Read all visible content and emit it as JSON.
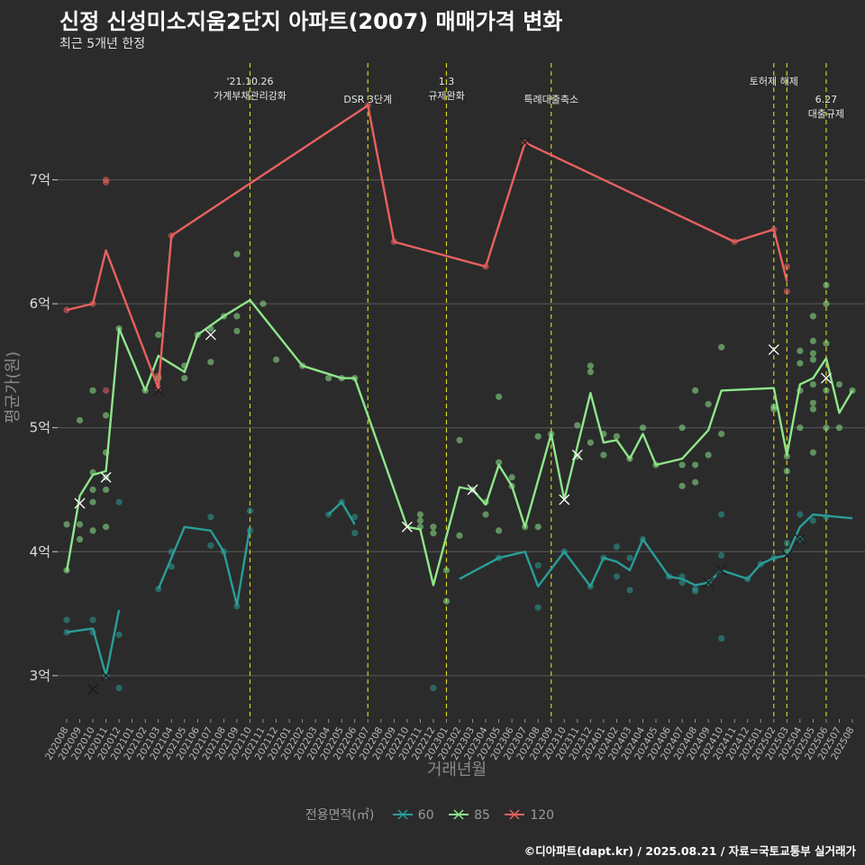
{
  "title": "신정 신성미소지움2단지 아파트(2007) 매매가격 변화",
  "subtitle": "최근 5개년 한정",
  "caption": "©디아파트(dapt.kr) / 2025.08.21 / 자료=국토교통부 실거래가",
  "legend": {
    "title": "전용면적(㎡)",
    "items": [
      {
        "label": "60",
        "color": "#2a9d98"
      },
      {
        "label": "85",
        "color": "#8ee68a"
      },
      {
        "label": "120",
        "color": "#e8615f"
      }
    ]
  },
  "chart_data": {
    "type": "line",
    "title": "신정 신성미소지움2단지 아파트(2007) 매매가격 변화",
    "subtitle": "최근 5개년 한정",
    "xlabel": "거래년월",
    "ylabel": "평균가(원)",
    "ylim": [
      2.65,
      8.0
    ],
    "yticks": [
      3,
      4,
      5,
      6,
      7
    ],
    "yticklabels": [
      "3억",
      "4억",
      "5억",
      "6억",
      "7억"
    ],
    "grid": true,
    "legend_position": "bottom",
    "x_categories": [
      "202008",
      "202009",
      "202010",
      "202011",
      "202012",
      "202101",
      "202102",
      "202103",
      "202104",
      "202105",
      "202106",
      "202107",
      "202108",
      "202109",
      "202110",
      "202111",
      "202112",
      "202201",
      "202202",
      "202203",
      "202204",
      "202205",
      "202206",
      "202207",
      "202208",
      "202209",
      "202210",
      "202211",
      "202212",
      "202301",
      "202302",
      "202303",
      "202304",
      "202305",
      "202306",
      "202307",
      "202308",
      "202309",
      "202310",
      "202311",
      "202312",
      "202401",
      "202402",
      "202403",
      "202404",
      "202405",
      "202406",
      "202407",
      "202408",
      "202409",
      "202410",
      "202411",
      "202412",
      "202501",
      "202502",
      "202503",
      "202504",
      "202505",
      "202506",
      "202507",
      "202508"
    ],
    "series": [
      {
        "name": "60",
        "color": "#2a9d98",
        "line": [
          [
            0,
            3.35
          ],
          [
            2,
            3.38
          ],
          [
            3,
            3.0
          ],
          [
            4,
            3.53
          ],
          null,
          [
            7,
            3.7
          ],
          [
            9,
            4.2
          ],
          [
            11,
            4.17
          ],
          [
            12,
            4.0
          ],
          [
            13,
            3.57
          ],
          [
            14,
            4.2
          ],
          null,
          [
            20,
            4.3
          ],
          [
            21,
            4.4
          ],
          [
            22,
            4.22
          ],
          null,
          [
            30,
            3.78
          ],
          [
            33,
            3.95
          ],
          [
            35,
            4.0
          ],
          [
            36,
            3.72
          ],
          [
            38,
            4.0
          ],
          [
            40,
            3.72
          ],
          [
            41,
            3.95
          ],
          [
            42,
            3.92
          ],
          [
            43,
            3.85
          ],
          [
            44,
            4.1
          ],
          [
            46,
            3.8
          ],
          [
            47,
            3.78
          ],
          [
            48,
            3.73
          ],
          [
            49,
            3.75
          ],
          [
            50,
            3.85
          ],
          [
            52,
            3.78
          ],
          [
            53,
            3.9
          ],
          [
            54,
            3.95
          ],
          [
            55,
            3.97
          ],
          [
            56,
            4.2
          ],
          [
            57,
            4.3
          ],
          [
            60,
            4.27
          ]
        ],
        "points": [
          [
            0,
            3.45
          ],
          [
            0,
            3.35
          ],
          [
            2,
            3.45
          ],
          [
            2,
            3.35
          ],
          [
            3,
            3.0
          ],
          [
            4,
            3.33
          ],
          [
            4,
            2.9
          ],
          [
            4,
            4.4
          ],
          [
            7,
            3.7
          ],
          [
            8,
            3.88
          ],
          [
            8,
            4.0
          ],
          [
            11,
            4.28
          ],
          [
            11,
            4.05
          ],
          [
            12,
            4.0
          ],
          [
            13,
            3.56
          ],
          [
            14,
            4.33
          ],
          [
            14,
            4.17
          ],
          [
            20,
            4.3
          ],
          [
            21,
            4.4
          ],
          [
            22,
            4.28
          ],
          [
            22,
            4.15
          ],
          [
            28,
            2.9
          ],
          [
            33,
            3.95
          ],
          [
            36,
            3.89
          ],
          [
            36,
            3.55
          ],
          [
            38,
            4.0
          ],
          [
            40,
            3.72
          ],
          [
            41,
            3.95
          ],
          [
            42,
            4.04
          ],
          [
            42,
            3.8
          ],
          [
            43,
            3.69
          ],
          [
            43,
            3.95
          ],
          [
            44,
            4.1
          ],
          [
            46,
            3.8
          ],
          [
            47,
            3.8
          ],
          [
            47,
            3.75
          ],
          [
            48,
            3.7
          ],
          [
            48,
            3.68
          ],
          [
            49,
            3.75
          ],
          [
            50,
            4.3
          ],
          [
            50,
            3.97
          ],
          [
            50,
            3.3
          ],
          [
            52,
            3.78
          ],
          [
            53,
            3.9
          ],
          [
            54,
            3.95
          ],
          [
            55,
            4.0
          ],
          [
            55,
            4.07
          ],
          [
            56,
            4.3
          ],
          [
            56,
            4.1
          ],
          [
            57,
            4.25
          ],
          [
            58,
            4.28
          ]
        ],
        "crosses": [
          [
            2,
            2.89
          ],
          [
            3,
            3.0
          ],
          [
            49,
            3.75
          ],
          [
            50,
            3.85
          ],
          [
            55,
            3.97
          ],
          [
            56,
            4.1
          ]
        ]
      },
      {
        "name": "85",
        "color": "#8ee68a",
        "line": [
          [
            0,
            3.84
          ],
          [
            1,
            4.45
          ],
          [
            2,
            4.62
          ],
          [
            3,
            4.65
          ],
          [
            4,
            5.8
          ],
          [
            6,
            5.3
          ],
          [
            7,
            5.58
          ],
          [
            9,
            5.45
          ],
          [
            10,
            5.75
          ],
          [
            12,
            5.9
          ],
          [
            14,
            6.03
          ],
          [
            18,
            5.5
          ],
          [
            21,
            5.4
          ],
          [
            22,
            5.4
          ],
          [
            26,
            4.2
          ],
          [
            27,
            4.18
          ],
          [
            28,
            3.73
          ],
          [
            30,
            4.52
          ],
          [
            31,
            4.5
          ],
          [
            32,
            4.38
          ],
          [
            33,
            4.7
          ],
          [
            34,
            4.53
          ],
          [
            35,
            4.2
          ],
          [
            37,
            4.95
          ],
          [
            38,
            4.42
          ],
          [
            40,
            5.28
          ],
          [
            41,
            4.88
          ],
          [
            42,
            4.9
          ],
          [
            43,
            4.75
          ],
          [
            44,
            4.95
          ],
          [
            45,
            4.7
          ],
          [
            47,
            4.75
          ],
          [
            49,
            4.98
          ],
          [
            50,
            5.3
          ],
          [
            54,
            5.32
          ],
          [
            55,
            4.78
          ],
          [
            56,
            5.35
          ],
          [
            57,
            5.4
          ],
          [
            58,
            5.56
          ],
          [
            59,
            5.12
          ],
          [
            60,
            5.3
          ]
        ],
        "points": [
          [
            0,
            4.22
          ],
          [
            0,
            3.85
          ],
          [
            1,
            5.06
          ],
          [
            1,
            4.22
          ],
          [
            1,
            4.1
          ],
          [
            2,
            4.64
          ],
          [
            2,
            4.5
          ],
          [
            2,
            4.4
          ],
          [
            2,
            4.17
          ],
          [
            2,
            5.3
          ],
          [
            3,
            4.8
          ],
          [
            3,
            5.1
          ],
          [
            3,
            4.2
          ],
          [
            3,
            4.6
          ],
          [
            3,
            4.5
          ],
          [
            4,
            5.8
          ],
          [
            6,
            5.3
          ],
          [
            7,
            5.75
          ],
          [
            7,
            5.4
          ],
          [
            9,
            5.5
          ],
          [
            9,
            5.4
          ],
          [
            10,
            5.75
          ],
          [
            11,
            5.8
          ],
          [
            11,
            5.53
          ],
          [
            12,
            5.9
          ],
          [
            13,
            6.4
          ],
          [
            13,
            5.9
          ],
          [
            13,
            5.78
          ],
          [
            15,
            6.0
          ],
          [
            16,
            5.55
          ],
          [
            18,
            5.5
          ],
          [
            20,
            5.4
          ],
          [
            21,
            5.4
          ],
          [
            22,
            5.4
          ],
          [
            27,
            4.3
          ],
          [
            27,
            4.25
          ],
          [
            27,
            4.2
          ],
          [
            28,
            4.2
          ],
          [
            28,
            4.15
          ],
          [
            29,
            3.85
          ],
          [
            29,
            3.6
          ],
          [
            30,
            4.9
          ],
          [
            30,
            4.13
          ],
          [
            31,
            4.5
          ],
          [
            32,
            4.4
          ],
          [
            32,
            4.3
          ],
          [
            33,
            5.25
          ],
          [
            33,
            4.72
          ],
          [
            33,
            4.17
          ],
          [
            34,
            4.6
          ],
          [
            34,
            4.53
          ],
          [
            35,
            4.2
          ],
          [
            36,
            4.93
          ],
          [
            36,
            4.2
          ],
          [
            37,
            4.95
          ],
          [
            39,
            4.77
          ],
          [
            39,
            5.02
          ],
          [
            40,
            5.5
          ],
          [
            40,
            5.45
          ],
          [
            40,
            4.88
          ],
          [
            41,
            4.95
          ],
          [
            41,
            4.78
          ],
          [
            42,
            4.93
          ],
          [
            43,
            4.75
          ],
          [
            44,
            5.0
          ],
          [
            45,
            4.7
          ],
          [
            47,
            5.0
          ],
          [
            47,
            4.7
          ],
          [
            47,
            4.53
          ],
          [
            48,
            5.3
          ],
          [
            48,
            4.7
          ],
          [
            48,
            4.56
          ],
          [
            49,
            5.19
          ],
          [
            49,
            4.78
          ],
          [
            50,
            5.65
          ],
          [
            50,
            4.95
          ],
          [
            54,
            5.17
          ],
          [
            54,
            5.15
          ],
          [
            55,
            4.65
          ],
          [
            55,
            4.77
          ],
          [
            56,
            5.62
          ],
          [
            56,
            5.52
          ],
          [
            56,
            5.3
          ],
          [
            56,
            5.0
          ],
          [
            57,
            5.9
          ],
          [
            57,
            5.7
          ],
          [
            57,
            5.6
          ],
          [
            57,
            5.55
          ],
          [
            57,
            5.35
          ],
          [
            57,
            5.2
          ],
          [
            57,
            5.15
          ],
          [
            57,
            4.8
          ],
          [
            58,
            6.15
          ],
          [
            58,
            6.0
          ],
          [
            58,
            5.68
          ],
          [
            58,
            5.3
          ],
          [
            58,
            5.0
          ],
          [
            59,
            5.35
          ],
          [
            59,
            5.0
          ],
          [
            60,
            5.3
          ]
        ],
        "crosses": [
          [
            1,
            4.39
          ],
          [
            3,
            4.6
          ],
          [
            11,
            5.75
          ],
          [
            26,
            4.2
          ],
          [
            31,
            4.5
          ],
          [
            38,
            4.42
          ],
          [
            39,
            4.78
          ],
          [
            54,
            5.63
          ],
          [
            58,
            5.4
          ]
        ]
      },
      {
        "name": "120",
        "color": "#e8615f",
        "line": [
          [
            0,
            5.95
          ],
          [
            2,
            6.0
          ],
          [
            3,
            6.43
          ],
          [
            7,
            5.32
          ],
          [
            8,
            6.55
          ],
          [
            23,
            7.6
          ],
          [
            25,
            6.5
          ],
          [
            32,
            6.3
          ],
          [
            35,
            7.3
          ],
          [
            51,
            6.5
          ],
          [
            54,
            6.6
          ],
          [
            55,
            6.18
          ]
        ],
        "points": [
          [
            0,
            5.95
          ],
          [
            2,
            6.0
          ],
          [
            3,
            7.0
          ],
          [
            3,
            6.98
          ],
          [
            3,
            5.3
          ],
          [
            7,
            5.42
          ],
          [
            7,
            5.32
          ],
          [
            8,
            6.55
          ],
          [
            23,
            7.6
          ],
          [
            25,
            6.5
          ],
          [
            32,
            6.3
          ],
          [
            35,
            7.3
          ],
          [
            51,
            6.5
          ],
          [
            54,
            6.6
          ],
          [
            55,
            6.3
          ],
          [
            55,
            6.1
          ]
        ],
        "crosses": [
          [
            7,
            5.3
          ],
          [
            35,
            7.3
          ]
        ]
      }
    ],
    "annotations": [
      {
        "x": 14.0,
        "lines": [
          "'21.10.26",
          "가계부채관리강화"
        ],
        "row": 0
      },
      {
        "x": 23.0,
        "lines": [
          "DSR 3단계"
        ],
        "row": 1
      },
      {
        "x": 29.0,
        "lines": [
          "1.3",
          "규제완화"
        ],
        "row": 0
      },
      {
        "x": 37.0,
        "lines": [
          "특례대출축소"
        ],
        "row": 1
      },
      {
        "x": 54.0,
        "lines": [
          "토허제 해제"
        ],
        "row": 0
      },
      {
        "x": 55.0,
        "lines": [],
        "row": 0
      },
      {
        "x": 58.0,
        "lines": [
          "6.27",
          "대출규제"
        ],
        "row": 1
      }
    ]
  }
}
